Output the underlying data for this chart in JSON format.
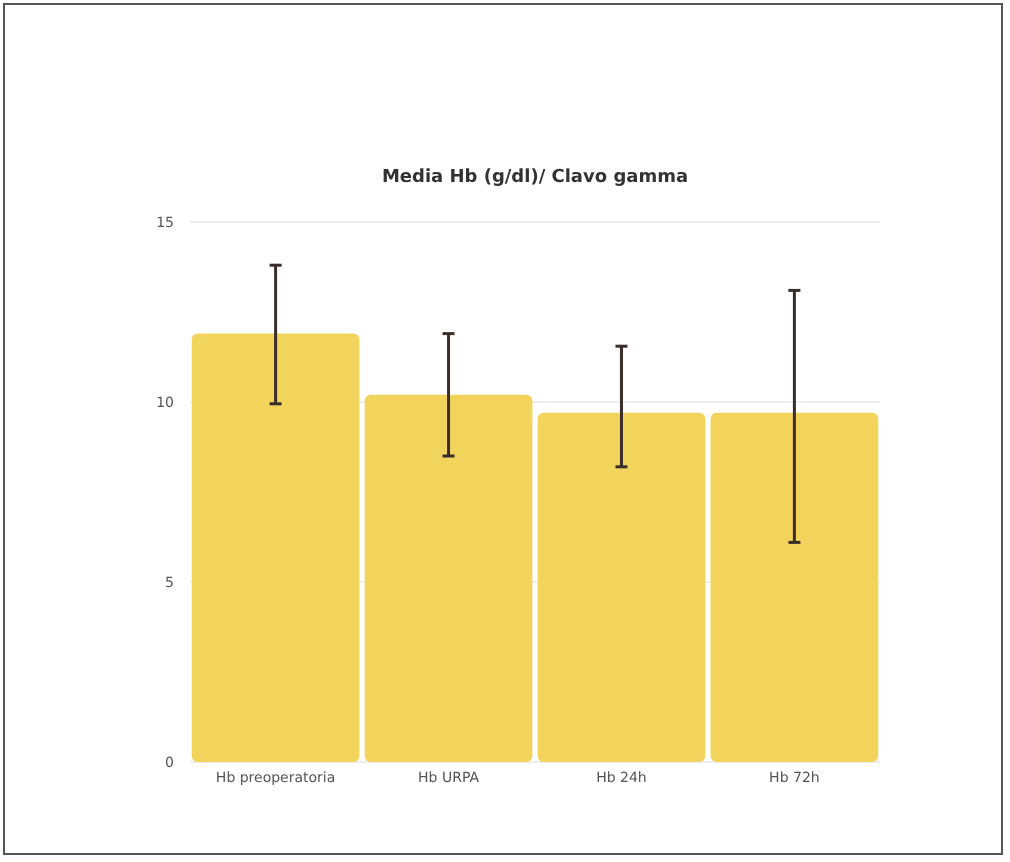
{
  "chart_data": {
    "type": "bar",
    "title": "Media Hb (g/dl)/ Clavo gamma",
    "categories": [
      "Hb preoperatoria",
      "Hb URPA",
      "Hb 24h",
      "Hb 72h"
    ],
    "values": [
      11.9,
      10.2,
      9.7,
      9.7
    ],
    "errors": [
      [
        9.95,
        13.8
      ],
      [
        8.5,
        11.9
      ],
      [
        8.2,
        11.55
      ],
      [
        6.1,
        13.1
      ]
    ],
    "color": "#f2d45c",
    "ylim": [
      0,
      15
    ],
    "yticks": [
      0,
      5,
      10,
      15
    ],
    "grid": "y"
  }
}
